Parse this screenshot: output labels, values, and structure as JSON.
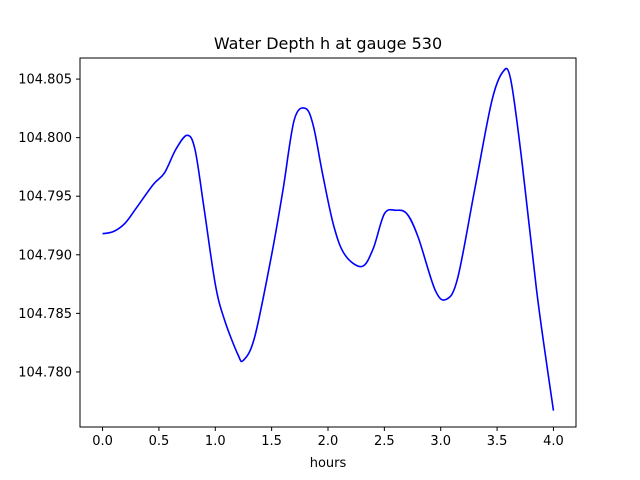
{
  "chart_data": {
    "type": "line",
    "title": "Water Depth h at gauge 530",
    "xlabel": "hours",
    "ylabel": "",
    "xlim": [
      -0.2,
      4.2
    ],
    "ylim": [
      104.7753,
      104.8068
    ],
    "xticks": [
      0.0,
      0.5,
      1.0,
      1.5,
      2.0,
      2.5,
      3.0,
      3.5,
      4.0
    ],
    "xtick_labels": [
      "0.0",
      "0.5",
      "1.0",
      "1.5",
      "2.0",
      "2.5",
      "3.0",
      "3.5",
      "4.0"
    ],
    "yticks": [
      104.78,
      104.785,
      104.79,
      104.795,
      104.8,
      104.805
    ],
    "ytick_labels": [
      "104.780",
      "104.785",
      "104.790",
      "104.795",
      "104.800",
      "104.805"
    ],
    "grid": false,
    "series": [
      {
        "name": "",
        "color": "#0000ff",
        "x": [
          0.0,
          0.1,
          0.2,
          0.3,
          0.45,
          0.55,
          0.65,
          0.75,
          0.82,
          0.9,
          1.0,
          1.08,
          1.2,
          1.25,
          1.35,
          1.5,
          1.6,
          1.7,
          1.8,
          1.87,
          1.95,
          2.05,
          2.15,
          2.3,
          2.4,
          2.5,
          2.6,
          2.7,
          2.8,
          2.95,
          3.05,
          3.15,
          3.3,
          3.45,
          3.55,
          3.62,
          3.72,
          3.85,
          3.95,
          4.0
        ],
        "y": [
          104.7918,
          104.792,
          104.7927,
          104.794,
          104.796,
          104.797,
          104.799,
          104.8002,
          104.799,
          104.794,
          104.7875,
          104.7845,
          104.7815,
          104.781,
          104.783,
          104.79,
          104.7955,
          104.8015,
          104.8025,
          104.801,
          104.797,
          104.7925,
          104.79,
          104.789,
          104.7905,
          104.7935,
          104.7938,
          104.7935,
          104.7915,
          104.787,
          104.7862,
          104.788,
          104.7955,
          104.803,
          104.8056,
          104.805,
          104.798,
          104.787,
          104.78,
          104.7767
        ]
      }
    ]
  }
}
